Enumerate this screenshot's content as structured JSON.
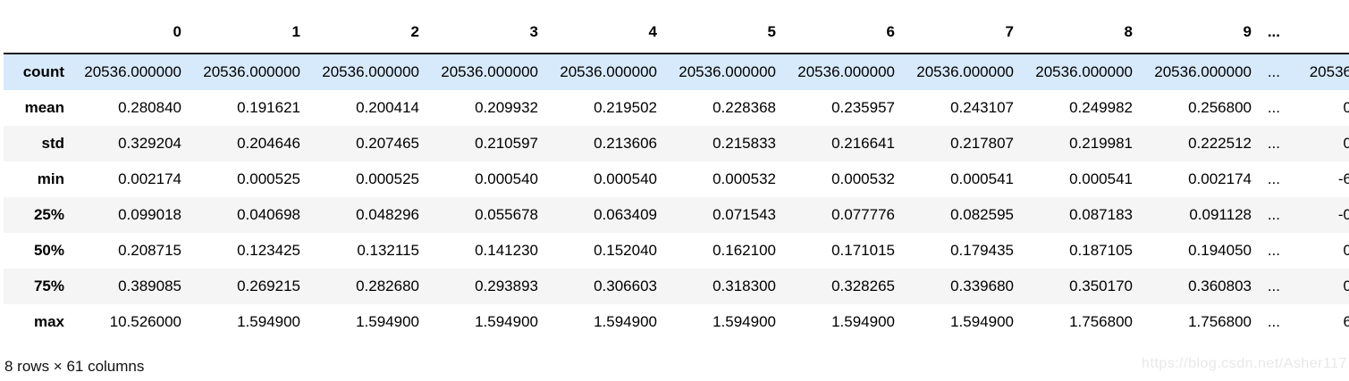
{
  "table": {
    "column_headers": [
      "0",
      "1",
      "2",
      "3",
      "4",
      "5",
      "6",
      "7",
      "8",
      "9",
      "..."
    ],
    "ellipsis": "...",
    "rows": [
      {
        "label": "count",
        "values": [
          "20536.000000",
          "20536.000000",
          "20536.000000",
          "20536.000000",
          "20536.000000",
          "20536.000000",
          "20536.000000",
          "20536.000000",
          "20536.000000",
          "20536.000000"
        ],
        "truncated_last": "20536",
        "highlighted": true
      },
      {
        "label": "mean",
        "values": [
          "0.280840",
          "0.191621",
          "0.200414",
          "0.209932",
          "0.219502",
          "0.228368",
          "0.235957",
          "0.243107",
          "0.249982",
          "0.256800"
        ],
        "truncated_last": "0",
        "highlighted": false
      },
      {
        "label": "std",
        "values": [
          "0.329204",
          "0.204646",
          "0.207465",
          "0.210597",
          "0.213606",
          "0.215833",
          "0.216641",
          "0.217807",
          "0.219981",
          "0.222512"
        ],
        "truncated_last": "0",
        "highlighted": false
      },
      {
        "label": "min",
        "values": [
          "0.002174",
          "0.000525",
          "0.000525",
          "0.000540",
          "0.000540",
          "0.000532",
          "0.000532",
          "0.000541",
          "0.000541",
          "0.002174"
        ],
        "truncated_last": "-6",
        "highlighted": false
      },
      {
        "label": "25%",
        "values": [
          "0.099018",
          "0.040698",
          "0.048296",
          "0.055678",
          "0.063409",
          "0.071543",
          "0.077776",
          "0.082595",
          "0.087183",
          "0.091128"
        ],
        "truncated_last": "-0",
        "highlighted": false
      },
      {
        "label": "50%",
        "values": [
          "0.208715",
          "0.123425",
          "0.132115",
          "0.141230",
          "0.152040",
          "0.162100",
          "0.171015",
          "0.179435",
          "0.187105",
          "0.194050"
        ],
        "truncated_last": "0",
        "highlighted": false
      },
      {
        "label": "75%",
        "values": [
          "0.389085",
          "0.269215",
          "0.282680",
          "0.293893",
          "0.306603",
          "0.318300",
          "0.328265",
          "0.339680",
          "0.350170",
          "0.360803"
        ],
        "truncated_last": "0",
        "highlighted": false
      },
      {
        "label": "max",
        "values": [
          "10.526000",
          "1.594900",
          "1.594900",
          "1.594900",
          "1.594900",
          "1.594900",
          "1.594900",
          "1.594900",
          "1.756800",
          "1.756800"
        ],
        "truncated_last": "6",
        "highlighted": false
      }
    ]
  },
  "footer": {
    "summary": "8 rows × 61 columns"
  },
  "watermark": {
    "text": "https://blog.csdn.net/Asher117"
  },
  "colors": {
    "hover_row": "#d7eafb",
    "stripe_row": "#f5f5f5",
    "header_rule": "#1c1c1c",
    "watermark": "#e8e8e8",
    "text": "#000000",
    "background": "#ffffff"
  }
}
